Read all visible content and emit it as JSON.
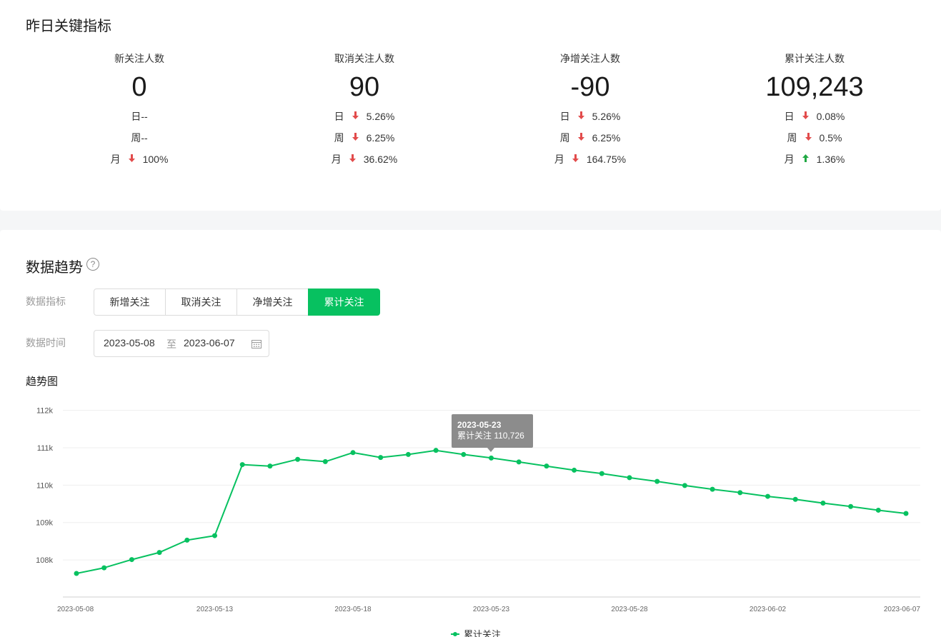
{
  "overview": {
    "title": "昨日关键指标",
    "metrics": [
      {
        "label": "新关注人数",
        "value": "0",
        "rows": [
          {
            "name": "日--",
            "dir": "",
            "pct": ""
          },
          {
            "name": "周--",
            "dir": "",
            "pct": ""
          },
          {
            "name": "月",
            "dir": "down",
            "pct": "100%"
          }
        ]
      },
      {
        "label": "取消关注人数",
        "value": "90",
        "rows": [
          {
            "name": "日",
            "dir": "down",
            "pct": "5.26%"
          },
          {
            "name": "周",
            "dir": "down",
            "pct": "6.25%"
          },
          {
            "name": "月",
            "dir": "down",
            "pct": "36.62%"
          }
        ]
      },
      {
        "label": "净增关注人数",
        "value": "-90",
        "rows": [
          {
            "name": "日",
            "dir": "down",
            "pct": "5.26%"
          },
          {
            "name": "周",
            "dir": "down",
            "pct": "6.25%"
          },
          {
            "name": "月",
            "dir": "down",
            "pct": "164.75%"
          }
        ]
      },
      {
        "label": "累计关注人数",
        "value": "109,243",
        "rows": [
          {
            "name": "日",
            "dir": "down",
            "pct": "0.08%"
          },
          {
            "name": "周",
            "dir": "down",
            "pct": "0.5%"
          },
          {
            "name": "月",
            "dir": "up",
            "pct": "1.36%"
          }
        ]
      }
    ]
  },
  "trend": {
    "title": "数据趋势",
    "help_icon": "?",
    "metric_label": "数据指标",
    "metric_tabs": [
      "新增关注",
      "取消关注",
      "净增关注",
      "累计关注"
    ],
    "active_tab": "累计关注",
    "time_label": "数据时间",
    "date_start": "2023-05-08",
    "date_sep": "至",
    "date_end": "2023-06-07",
    "chart_title": "趋势图",
    "tooltip": {
      "date": "2023-05-23",
      "text": "累计关注 110,726"
    },
    "legend": "累计关注"
  },
  "colors": {
    "accent": "#07c160",
    "down": "#e24b4b",
    "up": "#20a843"
  },
  "chart_data": {
    "type": "line",
    "x": [
      "2023-05-08",
      "2023-05-09",
      "2023-05-10",
      "2023-05-11",
      "2023-05-12",
      "2023-05-13",
      "2023-05-14",
      "2023-05-15",
      "2023-05-16",
      "2023-05-17",
      "2023-05-18",
      "2023-05-19",
      "2023-05-20",
      "2023-05-21",
      "2023-05-22",
      "2023-05-23",
      "2023-05-24",
      "2023-05-25",
      "2023-05-26",
      "2023-05-27",
      "2023-05-28",
      "2023-05-29",
      "2023-05-30",
      "2023-05-31",
      "2023-06-01",
      "2023-06-02",
      "2023-06-03",
      "2023-06-04",
      "2023-06-05",
      "2023-06-06",
      "2023-06-07"
    ],
    "series": [
      {
        "name": "累计关注",
        "values": [
          107640,
          107790,
          108010,
          108200,
          108530,
          108650,
          110550,
          110510,
          110690,
          110630,
          110870,
          110740,
          110820,
          110930,
          110820,
          110726,
          110620,
          110510,
          110400,
          110310,
          110200,
          110100,
          109990,
          109890,
          109800,
          109700,
          109620,
          109520,
          109430,
          109330,
          109243
        ]
      }
    ],
    "yticks": [
      "112k",
      "111k",
      "110k",
      "109k",
      "108k"
    ],
    "ylim": [
      107000,
      112000
    ],
    "xticks": [
      "2023-05-08",
      "2023-05-13",
      "2023-05-18",
      "2023-05-23",
      "2023-05-28",
      "2023-06-02",
      "2023-06-07"
    ],
    "grid": true,
    "legend_position": "bottom"
  }
}
